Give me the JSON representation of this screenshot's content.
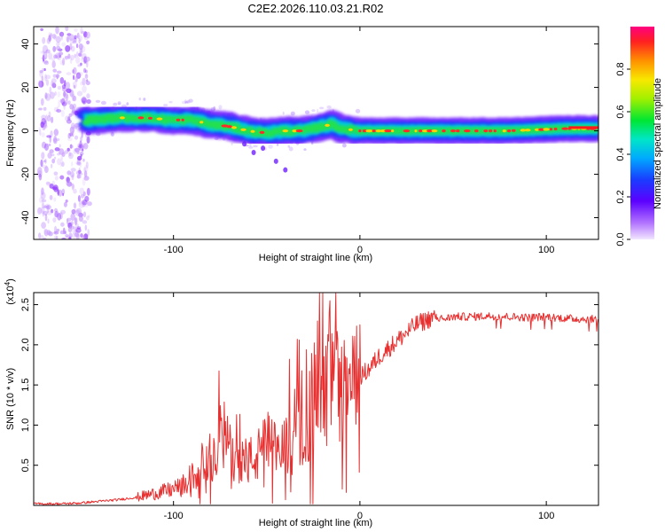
{
  "title": "C2E2.2026.110.03.21.R02",
  "chart_data": [
    {
      "type": "heatmap",
      "xlabel": "Height of straight line (km)",
      "ylabel": "Frequency (Hz)",
      "xlim": [
        -175,
        128
      ],
      "ylim": [
        -50,
        48
      ],
      "xticks": [
        -100,
        0,
        100
      ],
      "xtick_labels": [
        "-100",
        "0",
        "100"
      ],
      "yticks": [
        40,
        20,
        0,
        -20,
        -40
      ],
      "ytick_labels": [
        "40",
        "20",
        "0",
        "-20",
        "-40"
      ],
      "band_center_x": [
        -145,
        -130,
        -115,
        -100,
        -90,
        -80,
        -70,
        -60,
        -50,
        -40,
        -30,
        -20,
        -15,
        -10,
        0,
        20,
        50,
        80,
        110,
        128
      ],
      "band_center_y": [
        5,
        6,
        6,
        5,
        5,
        3,
        2,
        0,
        -1,
        0,
        0,
        2,
        3,
        1,
        0,
        0,
        0,
        0,
        1,
        1
      ],
      "colorbar": {
        "label": "Normalized spectral amplitude",
        "range": [
          0,
          1
        ],
        "ticks": [
          0.0,
          0.2,
          0.4,
          0.6,
          0.8
        ],
        "tick_labels": [
          "0.0",
          "0.2",
          "0.4",
          "0.6",
          "0.8"
        ]
      }
    },
    {
      "type": "line",
      "xlabel": "Height of straight line (km)",
      "ylabel": "SNR (10 * v/v)",
      "y_multiplier": "(x10",
      "y_multiplier_exp": "4",
      "y_multiplier_close": ")",
      "xlim": [
        -175,
        128
      ],
      "ylim": [
        0,
        2.65
      ],
      "xticks": [
        -100,
        0,
        100
      ],
      "xtick_labels": [
        "-100",
        "0",
        "100"
      ],
      "yticks": [
        0.5,
        1.0,
        1.5,
        2.0,
        2.5
      ],
      "ytick_labels": [
        "0.5",
        "1.0",
        "1.5",
        "2.0",
        "2.5"
      ],
      "color": "#e83030",
      "series": [
        {
          "name": "SNR",
          "x": [
            -175,
            -160,
            -150,
            -140,
            -130,
            -120,
            -110,
            -100,
            -95,
            -90,
            -85,
            -80,
            -75,
            -70,
            -65,
            -60,
            -55,
            -50,
            -45,
            -40,
            -35,
            -30,
            -25,
            -22,
            -20,
            -17,
            -15,
            -13,
            -11,
            -9,
            -7,
            -5,
            -2,
            0,
            5,
            10,
            15,
            20,
            25,
            30,
            35,
            40,
            45,
            50,
            60,
            70,
            80,
            90,
            100,
            110,
            120,
            128
          ],
          "y": [
            0.02,
            0.02,
            0.03,
            0.05,
            0.07,
            0.1,
            0.15,
            0.2,
            0.25,
            0.35,
            0.5,
            0.6,
            0.95,
            0.7,
            0.6,
            0.55,
            0.6,
            0.8,
            0.65,
            0.75,
            0.85,
            1.0,
            1.3,
            1.6,
            1.4,
            1.8,
            1.5,
            2.0,
            1.3,
            1.5,
            1.4,
            1.5,
            1.55,
            1.6,
            1.7,
            1.85,
            1.95,
            2.05,
            2.15,
            2.25,
            2.3,
            2.35,
            2.32,
            2.35,
            2.35,
            2.36,
            2.35,
            2.34,
            2.35,
            2.33,
            2.32,
            2.32
          ]
        }
      ]
    }
  ]
}
